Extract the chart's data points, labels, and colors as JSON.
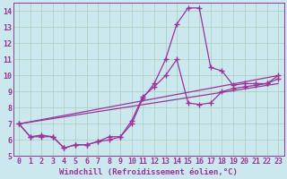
{
  "bg_color": "#cbe8ef",
  "line_color": "#993399",
  "grid_color": "#aaccbb",
  "spine_color": "#993399",
  "tick_color": "#993399",
  "xlabel": "Windchill (Refroidissement éolien,°C)",
  "xlim": [
    -0.5,
    23.5
  ],
  "ylim": [
    5,
    14.5
  ],
  "yticks": [
    5,
    6,
    7,
    8,
    9,
    10,
    11,
    12,
    13,
    14
  ],
  "xticks": [
    0,
    1,
    2,
    3,
    4,
    5,
    6,
    7,
    8,
    9,
    10,
    11,
    12,
    13,
    14,
    15,
    16,
    17,
    18,
    19,
    20,
    21,
    22,
    23
  ],
  "series1_x": [
    0,
    1,
    2,
    3,
    4,
    5,
    6,
    7,
    8,
    9,
    10,
    11,
    12,
    13,
    14,
    15,
    16,
    17,
    18,
    19,
    20,
    21,
    22,
    23
  ],
  "series1_y": [
    7.0,
    6.2,
    6.2,
    6.2,
    5.5,
    5.7,
    5.7,
    5.9,
    6.0,
    6.2,
    7.0,
    8.6,
    9.5,
    11.0,
    13.2,
    14.2,
    14.2,
    10.5,
    10.3,
    9.4,
    9.5,
    9.5,
    9.5,
    10.0
  ],
  "series2_x": [
    0,
    1,
    2,
    3,
    4,
    5,
    6,
    7,
    8,
    9,
    10,
    11,
    12,
    13,
    14,
    15,
    16,
    17,
    18,
    19,
    20,
    21,
    22,
    23
  ],
  "series2_y": [
    7.0,
    6.2,
    6.3,
    6.2,
    5.5,
    5.7,
    5.7,
    5.9,
    6.2,
    6.2,
    7.2,
    8.7,
    9.3,
    10.0,
    11.0,
    8.3,
    8.2,
    8.3,
    9.0,
    9.2,
    9.3,
    9.4,
    9.5,
    9.8
  ],
  "line3_x": [
    0,
    23
  ],
  "line3_y": [
    7.0,
    10.0
  ],
  "line4_x": [
    0,
    23
  ],
  "line4_y": [
    7.0,
    9.5
  ],
  "tick_fontsize": 6.0,
  "xlabel_fontsize": 6.5
}
